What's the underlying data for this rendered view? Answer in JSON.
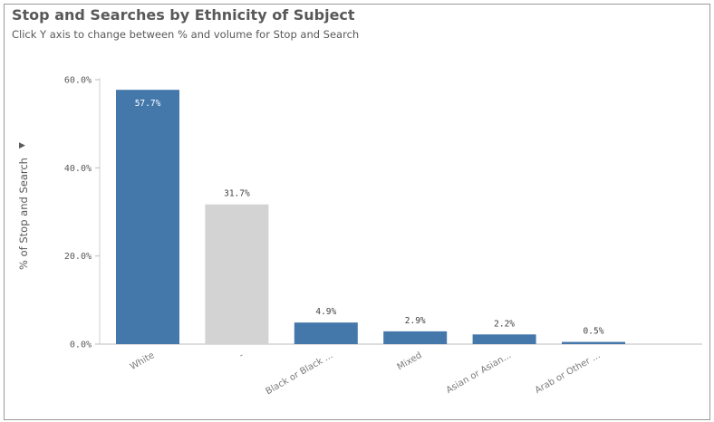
{
  "header": {
    "title": "Stop and Searches by Ethnicity of Subject",
    "subtitle": "Click Y axis to change between % and volume for Stop and Search"
  },
  "y_axis": {
    "title": "% of Stop and Search",
    "toggle_icon": "triangle-right-icon"
  },
  "colors": {
    "primary_bar": "#4477aa",
    "highlight_bar": "#d3d3d3"
  },
  "chart_data": {
    "type": "bar",
    "title": "Stop and Searches by Ethnicity of Subject",
    "xlabel": "",
    "ylabel": "% of Stop and Search",
    "ylim": [
      0,
      60
    ],
    "yticks": [
      0,
      20,
      40,
      60
    ],
    "ytick_labels": [
      "0.0%",
      "20.0%",
      "40.0%",
      "60.0%"
    ],
    "grid": false,
    "categories": [
      "White",
      "-",
      "Black or Black ...",
      "Mixed",
      "Asian or Asian...",
      "Arab or Other ..."
    ],
    "values": [
      57.7,
      31.7,
      4.9,
      2.9,
      2.2,
      0.5
    ],
    "value_labels": [
      "57.7%",
      "31.7%",
      "4.9%",
      "2.9%",
      "2.2%",
      "0.5%"
    ],
    "bar_colors": [
      "#4477aa",
      "#d3d3d3",
      "#4477aa",
      "#4477aa",
      "#4477aa",
      "#4477aa"
    ]
  }
}
